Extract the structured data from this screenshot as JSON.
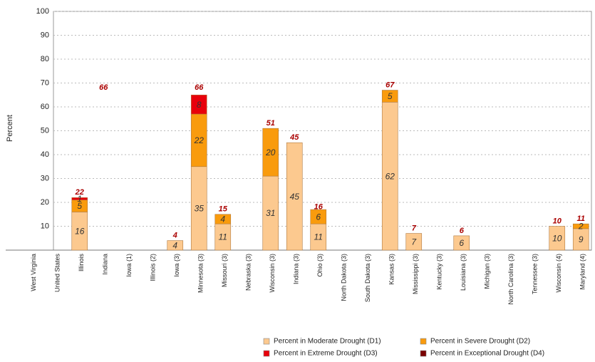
{
  "chart_data": {
    "type": "stacked_bar",
    "y_label": "Percent",
    "categories": [
      "West Virginia",
      "United States",
      "Illinois",
      "Indiana",
      "Iowa (1)",
      "Illinois (2)",
      "Iowa (3)",
      "Minnesota (3)",
      "Missouri (3)",
      "Nebraska (3)",
      "Wisconsin (3)",
      "Indiana (3)",
      "Ohio (3)",
      "North Dakota (3)",
      "South Dakota (3)",
      "Kansas (3)",
      "Mississippi (3)",
      "Kentucky (3)",
      "Louisiana (3)",
      "Michigan (3)",
      "North Carolina (3)",
      "Tennessee (3)",
      "Wisconsin (4)",
      "Maryland (4)"
    ],
    "series": [
      {
        "name": "Percent in Moderate Drought (D1)",
        "color": "#fcc98f",
        "values": [
          null,
          null,
          16,
          null,
          null,
          null,
          4,
          35,
          11,
          null,
          31,
          45,
          11,
          null,
          null,
          62,
          7,
          null,
          6,
          null,
          null,
          null,
          10,
          9
        ]
      },
      {
        "name": "Percent in Severe Drought (D2)",
        "color": "#f99b0d",
        "values": [
          null,
          null,
          5,
          null,
          null,
          null,
          null,
          22,
          4,
          null,
          20,
          null,
          6,
          null,
          null,
          5,
          null,
          null,
          null,
          null,
          null,
          null,
          null,
          2
        ]
      },
      {
        "name": "Percent in Extreme Drought (D3)",
        "color": "#e8000b",
        "values": [
          null,
          null,
          1,
          null,
          null,
          null,
          null,
          8,
          null,
          null,
          null,
          null,
          null,
          null,
          null,
          null,
          null,
          null,
          null,
          null,
          null,
          null,
          null,
          null
        ]
      },
      {
        "name": "Percent in Exceptional Drought (D4)",
        "color": "#7a0000",
        "values": [
          null,
          null,
          null,
          null,
          null,
          null,
          null,
          null,
          null,
          null,
          null,
          null,
          null,
          null,
          null,
          null,
          null,
          null,
          null,
          null,
          null,
          null,
          null,
          null
        ]
      }
    ],
    "totals": [
      null,
      null,
      22,
      66,
      null,
      null,
      4,
      66,
      15,
      null,
      51,
      45,
      16,
      null,
      null,
      67,
      7,
      null,
      6,
      null,
      null,
      null,
      10,
      11
    ],
    "ylim": [
      0,
      100
    ],
    "yticks": [
      10,
      20,
      30,
      40,
      50,
      60,
      70,
      80,
      90,
      100
    ],
    "grid": true
  }
}
